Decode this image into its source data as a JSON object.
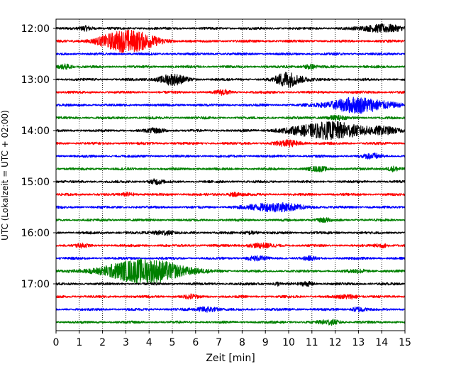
{
  "chart_data": {
    "type": "line",
    "title": "",
    "xlabel": "Zeit  [min]",
    "ylabel": "UTC (Lokalzeit = UTC + 02:00)",
    "xlim": [
      0,
      15
    ],
    "x_ticks": [
      0,
      1,
      2,
      3,
      4,
      5,
      6,
      7,
      8,
      9,
      10,
      11,
      12,
      13,
      14,
      15
    ],
    "y_tick_labels": [
      "12:00",
      "13:00",
      "14:00",
      "15:00",
      "16:00",
      "17:00"
    ],
    "grid": "vertical dotted lines at each minute",
    "trace_interval_min": 15,
    "trace_colors": [
      "#000000",
      "#ff0000",
      "#0000ff",
      "#008000"
    ],
    "traces": [
      {
        "start": "12:00",
        "color": "#000000",
        "events": [
          {
            "t": 1.3,
            "amp": 0.6,
            "dur": 0.2
          },
          {
            "t": 14.0,
            "amp": 1.0,
            "dur": 0.6
          }
        ]
      },
      {
        "start": "12:15",
        "color": "#ff0000",
        "events": [
          {
            "t": 3.1,
            "amp": 3.0,
            "dur": 0.8
          }
        ]
      },
      {
        "start": "12:30",
        "color": "#0000ff",
        "events": []
      },
      {
        "start": "12:45",
        "color": "#008000",
        "events": [
          {
            "t": 0.4,
            "amp": 0.6,
            "dur": 0.2
          },
          {
            "t": 10.9,
            "amp": 0.6,
            "dur": 0.2
          }
        ]
      },
      {
        "start": "13:00",
        "color": "#000000",
        "events": [
          {
            "t": 5.0,
            "amp": 1.4,
            "dur": 0.4
          },
          {
            "t": 9.9,
            "amp": 2.0,
            "dur": 0.3
          },
          {
            "t": 10.5,
            "amp": 0.6,
            "dur": 0.3
          }
        ]
      },
      {
        "start": "13:15",
        "color": "#ff0000",
        "events": [
          {
            "t": 7.2,
            "amp": 0.6,
            "dur": 0.2
          }
        ]
      },
      {
        "start": "13:30",
        "color": "#0000ff",
        "events": [
          {
            "t": 13.0,
            "amp": 2.0,
            "dur": 0.9
          }
        ]
      },
      {
        "start": "13:45",
        "color": "#008000",
        "events": [
          {
            "t": 12.0,
            "amp": 0.5,
            "dur": 0.3
          }
        ]
      },
      {
        "start": "14:00",
        "color": "#000000",
        "events": [
          {
            "t": 4.3,
            "amp": 0.5,
            "dur": 0.3
          },
          {
            "t": 11.8,
            "amp": 2.2,
            "dur": 1.1
          },
          {
            "t": 14.1,
            "amp": 0.7,
            "dur": 0.5
          }
        ]
      },
      {
        "start": "14:15",
        "color": "#ff0000",
        "events": [
          {
            "t": 10.0,
            "amp": 0.7,
            "dur": 0.4
          }
        ]
      },
      {
        "start": "14:30",
        "color": "#0000ff",
        "events": [
          {
            "t": 13.6,
            "amp": 0.6,
            "dur": 0.3
          }
        ]
      },
      {
        "start": "14:45",
        "color": "#008000",
        "events": [
          {
            "t": 11.3,
            "amp": 0.5,
            "dur": 0.3
          },
          {
            "t": 14.5,
            "amp": 0.6,
            "dur": 0.2
          }
        ]
      },
      {
        "start": "15:00",
        "color": "#000000",
        "events": [
          {
            "t": 4.3,
            "amp": 0.6,
            "dur": 0.2
          }
        ]
      },
      {
        "start": "15:15",
        "color": "#ff0000",
        "events": [
          {
            "t": 3.1,
            "amp": 0.4,
            "dur": 0.2
          },
          {
            "t": 7.7,
            "amp": 0.5,
            "dur": 0.2
          }
        ]
      },
      {
        "start": "15:30",
        "color": "#0000ff",
        "events": [
          {
            "t": 9.4,
            "amp": 1.1,
            "dur": 0.8
          }
        ]
      },
      {
        "start": "15:45",
        "color": "#008000",
        "events": [
          {
            "t": 11.5,
            "amp": 0.5,
            "dur": 0.2
          }
        ]
      },
      {
        "start": "16:00",
        "color": "#000000",
        "events": [
          {
            "t": 4.6,
            "amp": 0.6,
            "dur": 0.3
          },
          {
            "t": 8.4,
            "amp": 0.4,
            "dur": 0.2
          }
        ]
      },
      {
        "start": "16:15",
        "color": "#ff0000",
        "events": [
          {
            "t": 1.1,
            "amp": 0.4,
            "dur": 0.2
          },
          {
            "t": 8.8,
            "amp": 0.5,
            "dur": 0.4
          },
          {
            "t": 14.0,
            "amp": 0.5,
            "dur": 0.2
          }
        ]
      },
      {
        "start": "16:30",
        "color": "#0000ff",
        "events": [
          {
            "t": 8.6,
            "amp": 0.5,
            "dur": 0.3
          },
          {
            "t": 10.9,
            "amp": 0.4,
            "dur": 0.2
          }
        ]
      },
      {
        "start": "16:45",
        "color": "#008000",
        "events": [
          {
            "t": 3.8,
            "amp": 3.2,
            "dur": 1.2
          },
          {
            "t": 13.0,
            "amp": 0.4,
            "dur": 0.3
          }
        ]
      },
      {
        "start": "17:00",
        "color": "#000000",
        "events": [
          {
            "t": 10.8,
            "amp": 0.5,
            "dur": 0.2
          },
          {
            "t": 9.5,
            "amp": 0.5,
            "dur": 0.1
          }
        ]
      },
      {
        "start": "17:15",
        "color": "#ff0000",
        "events": [
          {
            "t": 5.8,
            "amp": 0.5,
            "dur": 0.2
          },
          {
            "t": 12.6,
            "amp": 0.5,
            "dur": 0.3
          }
        ]
      },
      {
        "start": "17:30",
        "color": "#0000ff",
        "events": [
          {
            "t": 6.5,
            "amp": 0.7,
            "dur": 0.3
          },
          {
            "t": 13.0,
            "amp": 0.6,
            "dur": 0.2
          }
        ]
      },
      {
        "start": "17:45",
        "color": "#008000",
        "events": [
          {
            "t": 11.8,
            "amp": 0.6,
            "dur": 0.3
          }
        ]
      }
    ]
  }
}
